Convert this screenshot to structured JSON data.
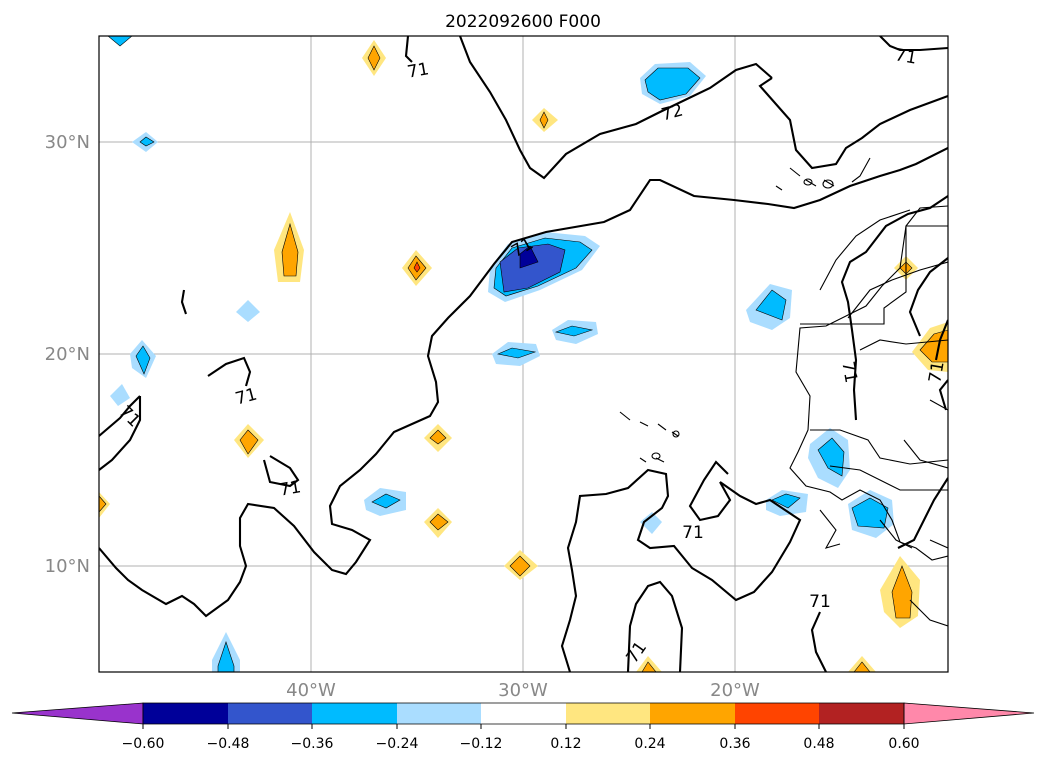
{
  "map": {
    "title": "2022092600 F000",
    "lat_labels": [
      "30°N",
      "20°N",
      "10°N"
    ],
    "lon_labels": [
      "40°W",
      "30°W",
      "20°W"
    ],
    "extent": {
      "lon_min": -50,
      "lon_max": -10,
      "lat_min": 5,
      "lat_max": 35
    },
    "gridlines": true
  },
  "contour_labels": [
    "71",
    "71",
    "72",
    "71",
    "71",
    "71",
    "71",
    "71",
    "71",
    "71",
    "71",
    "71"
  ],
  "colorbar": {
    "extend": "both",
    "ticks": [
      "−0.60",
      "−0.48",
      "−0.36",
      "−0.24",
      "−0.12",
      "0.12",
      "0.24",
      "0.36",
      "0.48",
      "0.60"
    ],
    "colors": [
      "#9933cc",
      "#000099",
      "#3355cc",
      "#00bbff",
      "#aaddff",
      "#ffffff",
      "#ffe680",
      "#ffa500",
      "#ff4400",
      "#b22222",
      "#ff88aa"
    ]
  },
  "colors": {
    "neg_light": "#aaddff",
    "neg_mid": "#00bbff",
    "neg_strong": "#3355cc",
    "neg_max": "#000099",
    "pos_light": "#ffe680",
    "pos_mid": "#ffa500",
    "pos_strong": "#ff4400",
    "contour": "#000000",
    "grid": "#b0b0b0"
  }
}
